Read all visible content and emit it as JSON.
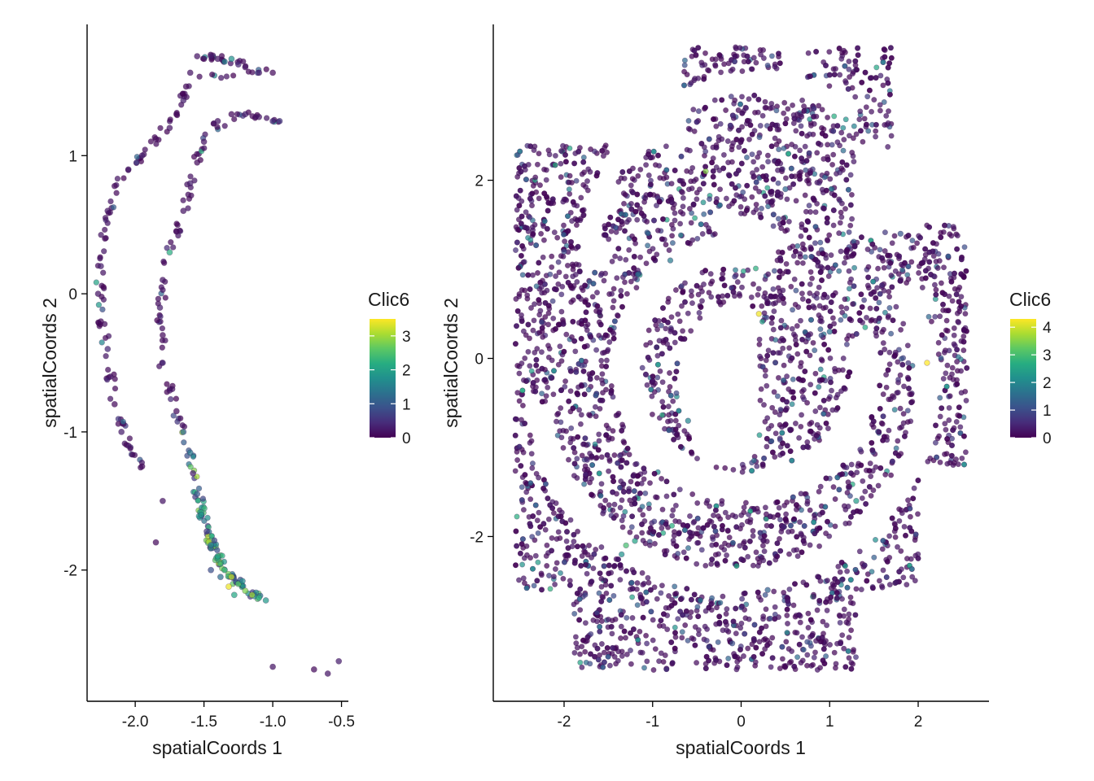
{
  "colors": {
    "viridis": [
      "#440154",
      "#472c7a",
      "#3b518b",
      "#2c718e",
      "#21908d",
      "#27ad81",
      "#5cc863",
      "#aadc32",
      "#fde725"
    ],
    "point_outline": "#3a0a4a",
    "axis": "#000000"
  },
  "chart_data": [
    {
      "type": "scatter",
      "title": "",
      "xlabel": "spatialCoords 1",
      "ylabel": "spatialCoords 2",
      "xlim": [
        -2.35,
        -0.45
      ],
      "ylim": [
        -2.95,
        1.95
      ],
      "xticks": [
        -2.0,
        -1.5,
        -1.0,
        -0.5
      ],
      "xtick_labels": [
        "-2.0",
        "-1.5",
        "-1.0",
        "-0.5"
      ],
      "yticks": [
        -2,
        -1,
        0,
        1
      ],
      "ytick_labels": [
        "-2",
        "-1",
        "0",
        "1"
      ],
      "legend": {
        "title": "Clic6",
        "position": "right",
        "ticks": [
          0,
          1,
          2,
          3
        ],
        "tick_labels": [
          "0",
          "1",
          "2",
          "3"
        ],
        "max": 3.5
      },
      "grid": false,
      "color_variable": "Clic6",
      "shape": "two curved bands; outer arc from top-left down to lower-right, inner arc parallel, high Clic6 concentrated near bottom (-1.3, -2.1)",
      "points": [
        [
          -1.55,
          1.72,
          0.2
        ],
        [
          -1.5,
          1.7,
          0.1
        ],
        [
          -1.45,
          1.72,
          0.3
        ],
        [
          -1.4,
          1.7,
          0.2
        ],
        [
          -1.35,
          1.68,
          1.6
        ],
        [
          -1.3,
          1.7,
          1.8
        ],
        [
          -1.25,
          1.66,
          0.4
        ],
        [
          -1.2,
          1.64,
          0.2
        ],
        [
          -1.1,
          1.6,
          0.3
        ],
        [
          -1.0,
          1.6,
          0.1
        ],
        [
          -1.6,
          1.6,
          0.2
        ],
        [
          -1.63,
          1.5,
          0.1
        ],
        [
          -1.65,
          1.4,
          0.3
        ],
        [
          -1.7,
          1.3,
          0.1
        ],
        [
          -1.75,
          1.2,
          0.2
        ],
        [
          -1.85,
          1.12,
          0.1
        ],
        [
          -1.95,
          1.0,
          0.3
        ],
        [
          -2.05,
          0.9,
          0.2
        ],
        [
          -2.15,
          0.78,
          0.1
        ],
        [
          -2.2,
          0.6,
          0.2
        ],
        [
          -2.22,
          0.4,
          0.1
        ],
        [
          -2.25,
          0.2,
          0.3
        ],
        [
          -2.27,
          0.0,
          0.2
        ],
        [
          -2.25,
          -0.2,
          0.1
        ],
        [
          -2.2,
          -0.4,
          0.4
        ],
        [
          -2.18,
          -0.6,
          0.2
        ],
        [
          -2.15,
          -0.8,
          0.1
        ],
        [
          -2.1,
          -1.0,
          0.3
        ],
        [
          -2.05,
          -1.1,
          0.2
        ],
        [
          -1.95,
          -1.25,
          0.1
        ],
        [
          -1.4,
          1.25,
          0.2
        ],
        [
          -1.3,
          1.3,
          0.1
        ],
        [
          -1.2,
          1.3,
          0.3
        ],
        [
          -1.1,
          1.28,
          0.2
        ],
        [
          -1.0,
          1.25,
          0.4
        ],
        [
          -0.95,
          1.25,
          0.6
        ],
        [
          -1.5,
          1.1,
          0.2
        ],
        [
          -1.55,
          0.95,
          0.1
        ],
        [
          -1.6,
          0.8,
          0.3
        ],
        [
          -1.65,
          0.6,
          0.2
        ],
        [
          -1.7,
          0.45,
          0.1
        ],
        [
          -1.75,
          0.3,
          2.2
        ],
        [
          -1.8,
          0.1,
          0.2
        ],
        [
          -1.82,
          -0.1,
          0.3
        ],
        [
          -1.8,
          -0.3,
          0.1
        ],
        [
          -1.8,
          -0.5,
          0.4
        ],
        [
          -1.75,
          -0.7,
          0.2
        ],
        [
          -1.7,
          -0.85,
          0.1
        ],
        [
          -1.65,
          -1.0,
          1.2
        ],
        [
          -1.6,
          -1.15,
          1.4
        ],
        [
          -1.58,
          -1.3,
          0.3
        ],
        [
          -1.55,
          -1.45,
          1.0
        ],
        [
          -1.52,
          -1.6,
          1.8
        ],
        [
          -1.48,
          -1.72,
          0.6
        ],
        [
          -1.45,
          -1.82,
          1.5
        ],
        [
          -1.4,
          -1.9,
          2.0
        ],
        [
          -1.35,
          -2.0,
          2.4
        ],
        [
          -1.3,
          -2.05,
          3.2
        ],
        [
          -1.25,
          -2.1,
          2.6
        ],
        [
          -1.2,
          -2.15,
          2.8
        ],
        [
          -1.15,
          -2.18,
          3.0
        ],
        [
          -1.1,
          -2.2,
          2.2
        ],
        [
          -1.05,
          -2.22,
          1.9
        ],
        [
          -1.32,
          -2.12,
          3.4
        ],
        [
          -1.28,
          -2.18,
          2.1
        ],
        [
          -1.22,
          -2.08,
          1.7
        ],
        [
          -1.38,
          -2.05,
          1.3
        ],
        [
          -1.45,
          -2.0,
          0.9
        ],
        [
          -1.8,
          -1.5,
          0.2
        ],
        [
          -1.85,
          -1.8,
          0.1
        ],
        [
          -1.0,
          -2.7,
          0.2
        ],
        [
          -0.7,
          -2.72,
          0.1
        ],
        [
          -0.6,
          -2.75,
          0.2
        ],
        [
          -0.52,
          -2.66,
          0.3
        ]
      ]
    },
    {
      "type": "scatter",
      "title": "",
      "xlabel": "spatialCoords 1",
      "ylabel": "spatialCoords 2",
      "xlim": [
        -2.8,
        2.8
      ],
      "ylim": [
        -3.85,
        3.75
      ],
      "xticks": [
        -2,
        -1,
        0,
        1,
        2
      ],
      "xtick_labels": [
        "-2",
        "-1",
        "0",
        "1",
        "2"
      ],
      "yticks": [
        -2,
        0,
        2
      ],
      "ytick_labels": [
        "-2",
        "0",
        "2"
      ],
      "legend": {
        "title": "Clic6",
        "position": "right",
        "ticks": [
          0,
          1,
          2,
          3,
          4
        ],
        "tick_labels": [
          "0",
          "1",
          "2",
          "3",
          "4"
        ],
        "max": 4.3
      },
      "grid": false,
      "color_variable": "Clic6",
      "shape": "dense tissue section with spiral-shaped gaps; mostly low Clic6 (dark purple) with scattered teal/green spots",
      "points": [
        [
          -1.3,
          -2.1,
          3.0
        ],
        [
          -1.2,
          -2.05,
          2.5
        ],
        [
          -1.35,
          -2.2,
          2.2
        ],
        [
          -0.4,
          2.1,
          3.5
        ],
        [
          0.2,
          0.5,
          4.2
        ],
        [
          2.1,
          -0.05,
          4.3
        ],
        [
          -0.6,
          -0.7,
          2.0
        ],
        [
          1.3,
          -1.6,
          2.4
        ],
        [
          1.0,
          0.3,
          1.6
        ],
        [
          -0.8,
          1.1,
          1.8
        ],
        [
          0.5,
          1.9,
          1.5
        ],
        [
          1.8,
          1.4,
          1.2
        ],
        [
          -2.0,
          1.2,
          1.0
        ],
        [
          0.3,
          -2.6,
          1.4
        ],
        [
          -0.1,
          -3.2,
          1.1
        ]
      ]
    }
  ]
}
